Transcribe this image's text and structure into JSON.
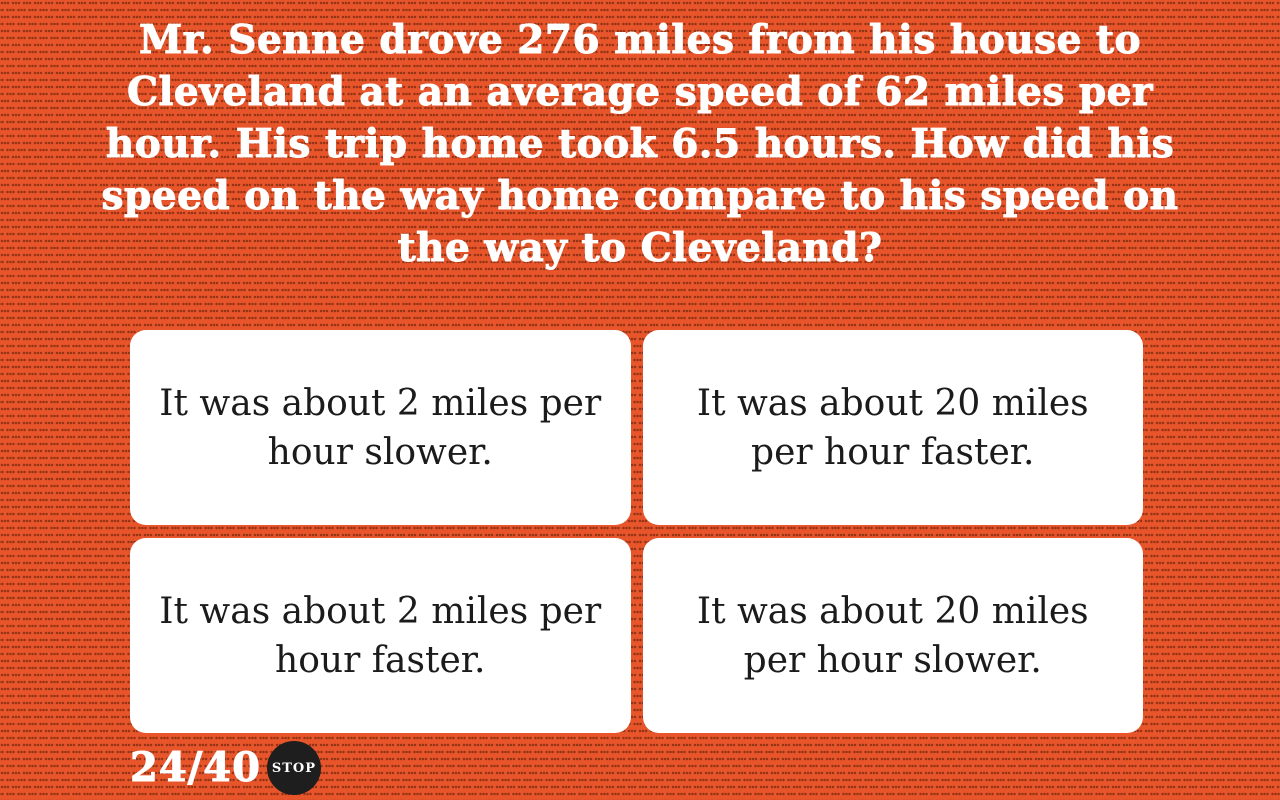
{
  "colors": {
    "background": "#E8552B",
    "dot_pattern": "#7A2E12",
    "card_background": "#FFFFFF",
    "card_text": "#1B1B1B",
    "question_text": "#FFFFFF",
    "stop_background": "#1E1E1E",
    "stop_text": "#FFFFFF"
  },
  "question": {
    "text": "Mr. Senne drove 276 miles from his house to Cleveland at an average speed of 62 miles per hour. His trip home took 6.5 hours. How did his speed on the way home compare to his speed on the way to Cleveland?",
    "lines": [
      "Mr. Senne drove 276 miles from his house to",
      "Cleveland at an average speed of 62 miles per",
      "hour. His trip home took 6.5 hours. How did his",
      "speed on the way home compare to his speed on",
      "the way to Cleveland?"
    ]
  },
  "answers": [
    {
      "text": "It was about 2 miles per hour slower.",
      "lines": [
        "It was about 2 miles per",
        "hour slower."
      ]
    },
    {
      "text": "It was about 20 miles per hour faster.",
      "lines": [
        "It was about 20 miles",
        "per hour faster."
      ]
    },
    {
      "text": "It was about 2 miles per hour faster.",
      "lines": [
        "It was about 2 miles per",
        "hour faster."
      ]
    },
    {
      "text": "It was about 20 miles per hour slower.",
      "lines": [
        "It was about 20 miles",
        "per hour slower."
      ]
    }
  ],
  "footer": {
    "progress": "24/40",
    "stop_label": "STOP"
  }
}
